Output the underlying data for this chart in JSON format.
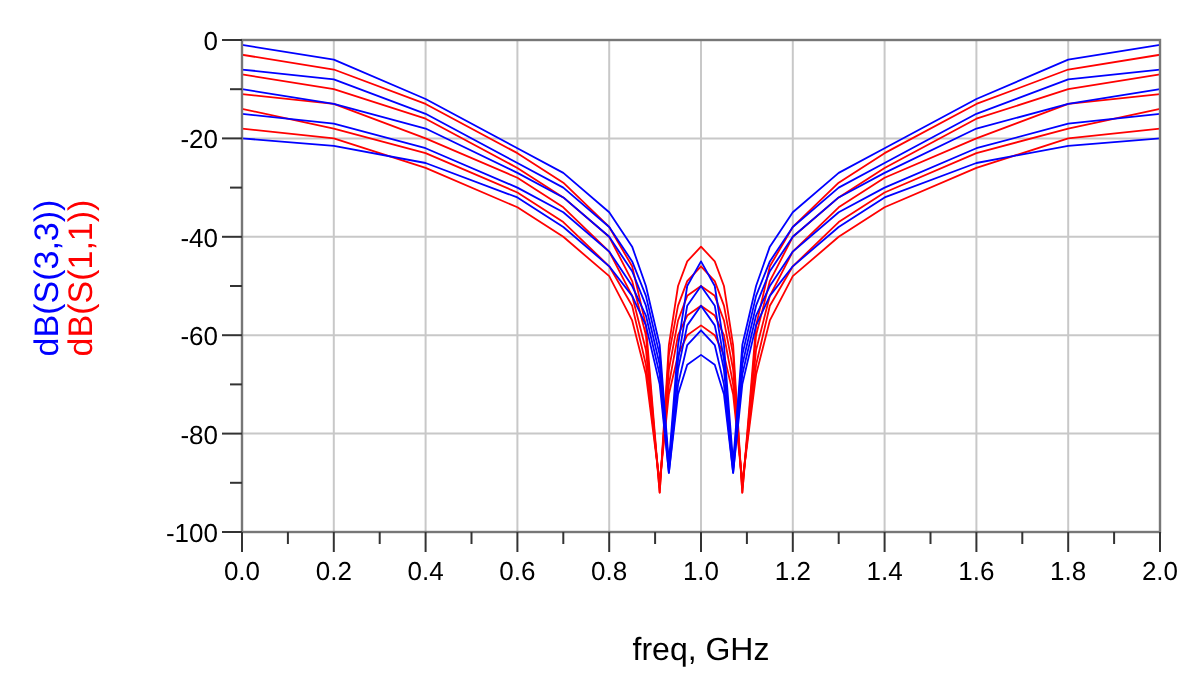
{
  "chart_data": {
    "type": "line",
    "xlabel": "freq, GHz",
    "x": [
      0,
      0.2,
      0.4,
      0.6,
      0.7,
      0.8,
      0.85,
      0.88,
      0.91,
      0.93,
      0.95,
      0.97,
      1.0,
      1.03,
      1.05,
      1.07,
      1.09,
      1.12,
      1.15,
      1.2,
      1.3,
      1.4,
      1.6,
      1.8,
      2.0
    ],
    "series": [
      {
        "name": "dB(S(1,1))",
        "color": "#ff0000",
        "values": [
          -3,
          -6,
          -13,
          -23,
          -29,
          -38,
          -46,
          -58,
          -92,
          -62,
          -50,
          -45,
          -42,
          -45,
          -50,
          -62,
          -92,
          -58,
          -46,
          -38,
          -29,
          -23,
          -13,
          -6,
          -3
        ]
      },
      {
        "color": "#ff0000",
        "values": [
          -7,
          -10,
          -16,
          -26,
          -32,
          -40,
          -49,
          -60,
          -92,
          -64,
          -54,
          -49,
          -46,
          -49,
          -54,
          -64,
          -92,
          -60,
          -49,
          -40,
          -32,
          -26,
          -16,
          -10,
          -7
        ]
      },
      {
        "color": "#ff0000",
        "values": [
          -11,
          -13,
          -20,
          -28,
          -34,
          -43,
          -52,
          -63,
          -91,
          -67,
          -57,
          -52,
          -50,
          -52,
          -57,
          -67,
          -91,
          -63,
          -52,
          -43,
          -34,
          -28,
          -20,
          -13,
          -11
        ]
      },
      {
        "color": "#ff0000",
        "values": [
          -14,
          -18,
          -23,
          -31,
          -37,
          -46,
          -54,
          -66,
          -90,
          -70,
          -60,
          -56,
          -54,
          -56,
          -60,
          -70,
          -90,
          -66,
          -54,
          -46,
          -37,
          -31,
          -23,
          -18,
          -14
        ]
      },
      {
        "color": "#ff0000",
        "values": [
          -18,
          -20,
          -26,
          -34,
          -40,
          -48,
          -57,
          -68,
          -90,
          -72,
          -64,
          -60,
          -58,
          -60,
          -64,
          -72,
          -90,
          -68,
          -57,
          -48,
          -40,
          -34,
          -26,
          -20,
          -18
        ]
      },
      {
        "name": "dB(S(3,3))",
        "color": "#0000ff",
        "values": [
          -1,
          -4,
          -12,
          -22,
          -27,
          -35,
          -42,
          -50,
          -62,
          -86,
          -62,
          -50,
          -45,
          -50,
          -62,
          -86,
          -62,
          -50,
          -42,
          -35,
          -27,
          -22,
          -12,
          -4,
          -1
        ]
      },
      {
        "color": "#0000ff",
        "values": [
          -6,
          -8,
          -15,
          -25,
          -30,
          -38,
          -45,
          -52,
          -64,
          -87,
          -65,
          -54,
          -50,
          -54,
          -65,
          -87,
          -64,
          -52,
          -45,
          -38,
          -30,
          -25,
          -15,
          -8,
          -6
        ]
      },
      {
        "color": "#0000ff",
        "values": [
          -10,
          -13,
          -18,
          -27,
          -32,
          -40,
          -47,
          -54,
          -66,
          -87,
          -67,
          -58,
          -54,
          -58,
          -67,
          -87,
          -66,
          -54,
          -47,
          -40,
          -32,
          -27,
          -18,
          -13,
          -10
        ]
      },
      {
        "color": "#0000ff",
        "values": [
          -15,
          -17,
          -22,
          -30,
          -35,
          -43,
          -50,
          -56,
          -68,
          -88,
          -70,
          -62,
          -59,
          -62,
          -70,
          -88,
          -68,
          -56,
          -50,
          -43,
          -35,
          -30,
          -22,
          -17,
          -15
        ]
      },
      {
        "color": "#0000ff",
        "values": [
          -20,
          -21.5,
          -25,
          -32,
          -38,
          -46,
          -52,
          -58,
          -70,
          -88,
          -72,
          -66,
          -64,
          -66,
          -72,
          -88,
          -70,
          -58,
          -52,
          -46,
          -38,
          -32,
          -25,
          -21.5,
          -20
        ]
      }
    ],
    "xlim": [
      0,
      2
    ],
    "xticks": [
      {
        "value": 0,
        "label": "0.0"
      },
      {
        "value": 0.1,
        "label": null
      },
      {
        "value": 0.2,
        "label": "0.2"
      },
      {
        "value": 0.3,
        "label": null
      },
      {
        "value": 0.4,
        "label": "0.4"
      },
      {
        "value": 0.5,
        "label": null
      },
      {
        "value": 0.6,
        "label": "0.6"
      },
      {
        "value": 0.7,
        "label": null
      },
      {
        "value": 0.8,
        "label": "0.8"
      },
      {
        "value": 0.9,
        "label": null
      },
      {
        "value": 1,
        "label": "1.0"
      },
      {
        "value": 1.1,
        "label": null
      },
      {
        "value": 1.2,
        "label": "1.2"
      },
      {
        "value": 1.3,
        "label": null
      },
      {
        "value": 1.4,
        "label": "1.4"
      },
      {
        "value": 1.5,
        "label": null
      },
      {
        "value": 1.6,
        "label": "1.6"
      },
      {
        "value": 1.7,
        "label": null
      },
      {
        "value": 1.8,
        "label": "1.8"
      },
      {
        "value": 1.9,
        "label": null
      },
      {
        "value": 2,
        "label": "2.0"
      }
    ],
    "ylim": [
      -100,
      0
    ],
    "yticks": [
      -100,
      {
        "value": -90,
        "label": null
      },
      -80,
      {
        "value": -70,
        "label": null
      },
      -60,
      {
        "value": -50,
        "label": null
      },
      -40,
      {
        "value": -30,
        "label": null
      },
      -20,
      {
        "value": -10,
        "label": null
      },
      0
    ],
    "grid": true,
    "legend": "left",
    "line_style": "solid"
  }
}
